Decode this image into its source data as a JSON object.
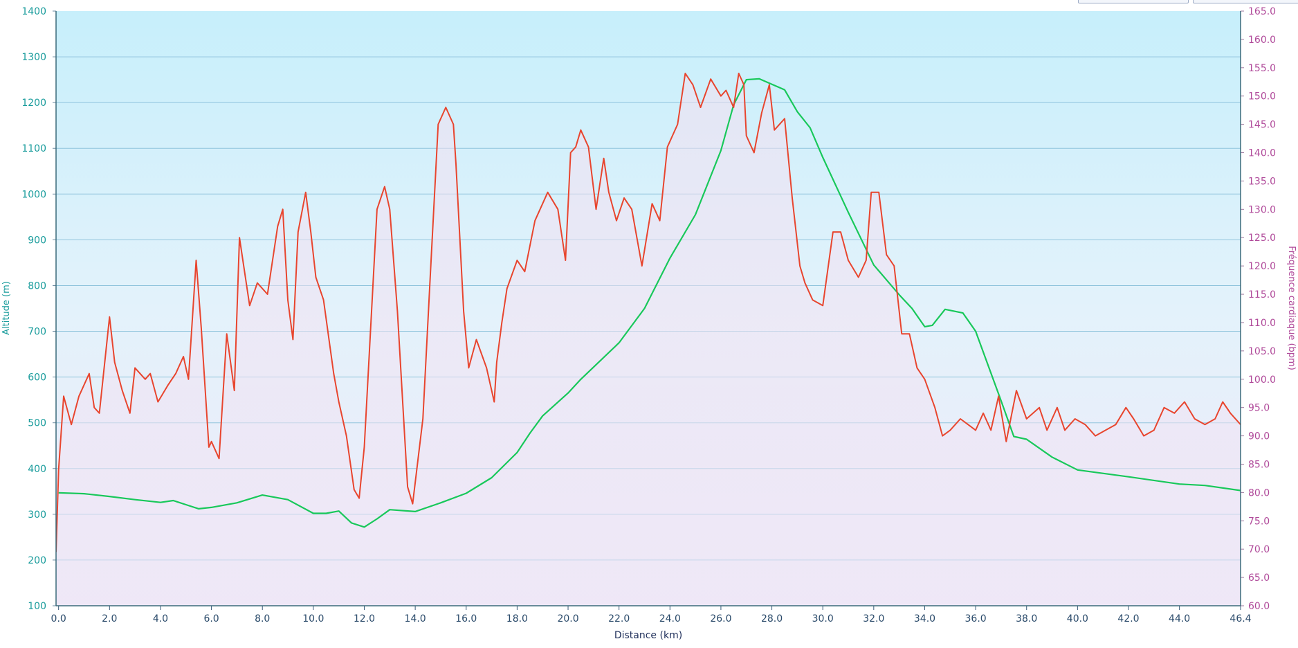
{
  "colors": {
    "altitude": "#18c85a",
    "heart_rate": "#e8452e",
    "bg_top": "#c7effb",
    "bg_bottom": "#efe9f8",
    "grid": "#8fc4dc",
    "left_axis": "#1a9c9c",
    "right_axis": "#b04a9a"
  },
  "chart_data": {
    "type": "line",
    "xlabel": "Distance  (km)",
    "ylabel_left": "Altitude (m)",
    "ylabel_right": "Fréquence cardiaque (bpm)",
    "xlim": [
      -0.1,
      46.4
    ],
    "ylim_left": [
      100,
      1400
    ],
    "ylim_right": [
      60,
      165
    ],
    "x_ticks": [
      "0.0",
      "2.0",
      "4.0",
      "6.0",
      "8.0",
      "10.0",
      "12.0",
      "14.0",
      "16.0",
      "18.0",
      "20.0",
      "22.0",
      "24.0",
      "26.0",
      "28.0",
      "30.0",
      "32.0",
      "34.0",
      "36.0",
      "38.0",
      "40.0",
      "42.0",
      "44.0",
      "46.4"
    ],
    "y_left_ticks": [
      "100",
      "200",
      "300",
      "400",
      "500",
      "600",
      "700",
      "800",
      "900",
      "1000",
      "1100",
      "1200",
      "1300",
      "1400"
    ],
    "y_right_ticks": [
      "60.0",
      "65.0",
      "70.0",
      "75.0",
      "80.0",
      "85.0",
      "90.0",
      "95.0",
      "100.0",
      "105.0",
      "110.0",
      "115.0",
      "120.0",
      "125.0",
      "130.0",
      "135.0",
      "140.0",
      "145.0",
      "150.0",
      "155.0",
      "160.0",
      "165.0"
    ],
    "grid": true,
    "series": [
      {
        "name": "Altitude (m)",
        "axis": "left",
        "points": [
          [
            0,
            347
          ],
          [
            1,
            345
          ],
          [
            2,
            339
          ],
          [
            3,
            332
          ],
          [
            4,
            326
          ],
          [
            4.5,
            330
          ],
          [
            5,
            321
          ],
          [
            5.5,
            312
          ],
          [
            6,
            315
          ],
          [
            7,
            325
          ],
          [
            8,
            342
          ],
          [
            9,
            332
          ],
          [
            10,
            302
          ],
          [
            10.5,
            302
          ],
          [
            11,
            307
          ],
          [
            11.5,
            281
          ],
          [
            12,
            272
          ],
          [
            12.5,
            290
          ],
          [
            13,
            310
          ],
          [
            14,
            306
          ],
          [
            15,
            325
          ],
          [
            16,
            346
          ],
          [
            17,
            380
          ],
          [
            18,
            435
          ],
          [
            18.5,
            477
          ],
          [
            19,
            515
          ],
          [
            20,
            565
          ],
          [
            20.5,
            595
          ],
          [
            22,
            675
          ],
          [
            23,
            750
          ],
          [
            24,
            860
          ],
          [
            25,
            955
          ],
          [
            26,
            1095
          ],
          [
            26.5,
            1195
          ],
          [
            27,
            1250
          ],
          [
            27.5,
            1252
          ],
          [
            28,
            1240
          ],
          [
            28.5,
            1228
          ],
          [
            29,
            1180
          ],
          [
            29.5,
            1145
          ],
          [
            30,
            1080
          ],
          [
            31,
            960
          ],
          [
            32,
            845
          ],
          [
            33,
            780
          ],
          [
            33.5,
            750
          ],
          [
            34,
            710
          ],
          [
            34.3,
            713
          ],
          [
            34.8,
            748
          ],
          [
            35.5,
            740
          ],
          [
            36,
            700
          ],
          [
            37,
            548
          ],
          [
            37.5,
            470
          ],
          [
            38,
            464
          ],
          [
            39,
            425
          ],
          [
            40,
            397
          ],
          [
            42,
            382
          ],
          [
            44,
            366
          ],
          [
            45,
            363
          ],
          [
            46.4,
            352
          ]
        ]
      },
      {
        "name": "Fréquence cardiaque (bpm)",
        "axis": "right",
        "points": [
          [
            -0.1,
            69.5
          ],
          [
            0,
            84
          ],
          [
            0.2,
            97
          ],
          [
            0.5,
            92
          ],
          [
            0.8,
            97
          ],
          [
            1.2,
            101
          ],
          [
            1.4,
            95
          ],
          [
            1.6,
            94
          ],
          [
            2.0,
            111
          ],
          [
            2.2,
            103
          ],
          [
            2.5,
            98
          ],
          [
            2.8,
            94
          ],
          [
            3.0,
            102
          ],
          [
            3.4,
            100
          ],
          [
            3.6,
            101
          ],
          [
            3.9,
            96
          ],
          [
            4.3,
            99
          ],
          [
            4.6,
            101
          ],
          [
            4.9,
            104
          ],
          [
            5.1,
            100
          ],
          [
            5.4,
            121
          ],
          [
            5.6,
            109
          ],
          [
            5.9,
            88
          ],
          [
            6.0,
            89
          ],
          [
            6.3,
            86
          ],
          [
            6.6,
            108
          ],
          [
            6.9,
            98
          ],
          [
            7.1,
            125
          ],
          [
            7.5,
            113
          ],
          [
            7.8,
            117
          ],
          [
            8.2,
            115
          ],
          [
            8.6,
            127
          ],
          [
            8.8,
            130
          ],
          [
            9.0,
            114
          ],
          [
            9.2,
            107
          ],
          [
            9.4,
            126
          ],
          [
            9.7,
            133
          ],
          [
            9.9,
            126
          ],
          [
            10.1,
            118
          ],
          [
            10.4,
            114
          ],
          [
            10.8,
            101
          ],
          [
            11.0,
            96
          ],
          [
            11.3,
            90
          ],
          [
            11.6,
            80.5
          ],
          [
            11.8,
            79
          ],
          [
            12.0,
            88
          ],
          [
            12.5,
            130
          ],
          [
            12.8,
            134
          ],
          [
            13.0,
            130
          ],
          [
            13.3,
            112
          ],
          [
            13.7,
            81
          ],
          [
            13.9,
            78
          ],
          [
            14.3,
            93
          ],
          [
            14.6,
            119
          ],
          [
            14.9,
            145
          ],
          [
            15.2,
            148
          ],
          [
            15.5,
            145
          ],
          [
            15.6,
            138
          ],
          [
            15.9,
            112
          ],
          [
            16.1,
            102
          ],
          [
            16.4,
            107
          ],
          [
            16.8,
            102
          ],
          [
            17.1,
            96
          ],
          [
            17.2,
            103
          ],
          [
            17.4,
            110
          ],
          [
            17.6,
            116
          ],
          [
            18.0,
            121
          ],
          [
            18.3,
            119
          ],
          [
            18.7,
            128
          ],
          [
            19.2,
            133
          ],
          [
            19.6,
            130
          ],
          [
            19.9,
            121
          ],
          [
            20.1,
            140
          ],
          [
            20.3,
            141
          ],
          [
            20.5,
            144
          ],
          [
            20.8,
            141
          ],
          [
            21.1,
            130
          ],
          [
            21.4,
            139
          ],
          [
            21.6,
            133
          ],
          [
            21.9,
            128
          ],
          [
            22.2,
            132
          ],
          [
            22.5,
            130
          ],
          [
            22.9,
            120
          ],
          [
            23.3,
            131
          ],
          [
            23.6,
            128
          ],
          [
            23.9,
            141
          ],
          [
            24.3,
            145
          ],
          [
            24.6,
            154
          ],
          [
            24.9,
            152
          ],
          [
            25.2,
            148
          ],
          [
            25.6,
            153
          ],
          [
            26.0,
            150
          ],
          [
            26.2,
            151
          ],
          [
            26.5,
            148
          ],
          [
            26.7,
            154
          ],
          [
            26.9,
            152
          ],
          [
            27.0,
            143
          ],
          [
            27.3,
            140
          ],
          [
            27.6,
            147
          ],
          [
            27.9,
            152
          ],
          [
            28.1,
            144
          ],
          [
            28.5,
            146
          ],
          [
            28.8,
            132
          ],
          [
            29.1,
            120
          ],
          [
            29.3,
            117
          ],
          [
            29.6,
            114
          ],
          [
            30.0,
            113
          ],
          [
            30.4,
            126
          ],
          [
            30.7,
            126
          ],
          [
            31.0,
            121
          ],
          [
            31.4,
            118
          ],
          [
            31.7,
            121
          ],
          [
            31.9,
            133
          ],
          [
            32.2,
            133
          ],
          [
            32.5,
            122
          ],
          [
            32.8,
            120
          ],
          [
            33.1,
            108
          ],
          [
            33.4,
            108
          ],
          [
            33.7,
            102
          ],
          [
            34.0,
            100
          ],
          [
            34.4,
            95
          ],
          [
            34.7,
            90
          ],
          [
            35.0,
            91
          ],
          [
            35.4,
            93
          ],
          [
            35.7,
            92
          ],
          [
            36.0,
            91
          ],
          [
            36.3,
            94
          ],
          [
            36.6,
            91
          ],
          [
            36.9,
            97
          ],
          [
            37.2,
            89
          ],
          [
            37.6,
            98
          ],
          [
            38.0,
            93
          ],
          [
            38.5,
            95
          ],
          [
            38.8,
            91
          ],
          [
            39.2,
            95
          ],
          [
            39.5,
            91
          ],
          [
            39.9,
            93
          ],
          [
            40.3,
            92
          ],
          [
            40.7,
            90
          ],
          [
            41.1,
            91
          ],
          [
            41.5,
            92
          ],
          [
            41.9,
            95
          ],
          [
            42.2,
            93
          ],
          [
            42.6,
            90
          ],
          [
            43.0,
            91
          ],
          [
            43.4,
            95
          ],
          [
            43.8,
            94
          ],
          [
            44.2,
            96
          ],
          [
            44.6,
            93
          ],
          [
            45.0,
            92
          ],
          [
            45.4,
            93
          ],
          [
            45.7,
            96
          ],
          [
            46.0,
            94
          ],
          [
            46.4,
            92
          ]
        ]
      }
    ]
  }
}
